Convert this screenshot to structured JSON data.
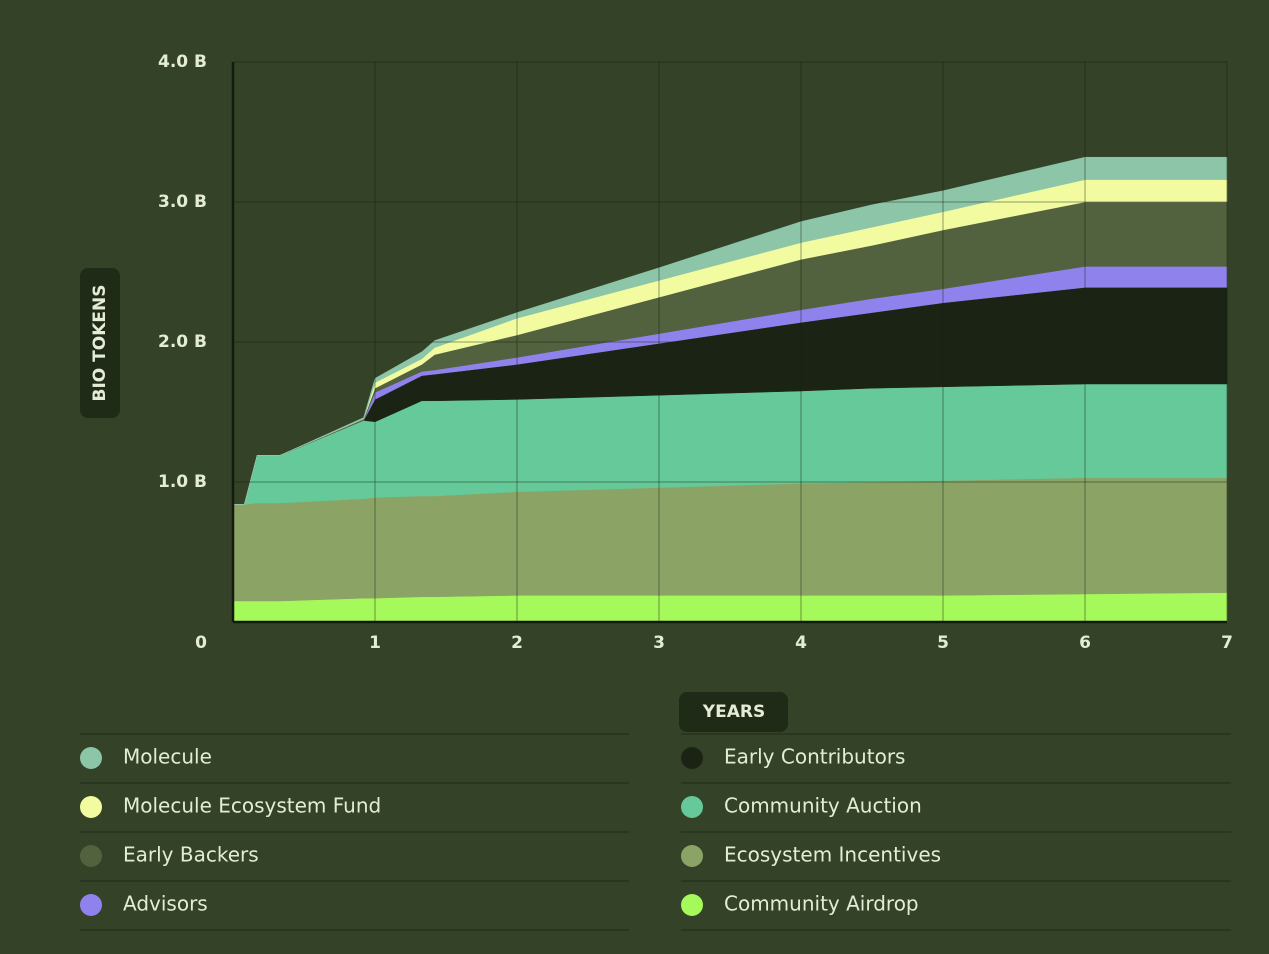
{
  "chart_data": {
    "type": "stacked-area",
    "x_label": "YEARS",
    "y_label": "BIO TOKENS",
    "x": [
      0,
      0.08,
      0.17,
      0.33,
      0.92,
      1,
      1.33,
      1.42,
      2,
      3,
      4,
      4.5,
      5,
      6,
      7
    ],
    "xlim": [
      0,
      7
    ],
    "xticks": [
      1,
      2,
      3,
      4,
      5,
      6,
      7
    ],
    "ylim": [
      0,
      4
    ],
    "yticks": [
      0,
      {
        "value": 1,
        "label": "1.0 B"
      },
      {
        "value": 2,
        "label": "2.0 B"
      },
      {
        "value": 3,
        "label": "3.0 B"
      },
      {
        "value": 4,
        "label": "4.0 B"
      }
    ],
    "grid": true,
    "series": [
      {
        "name": "Molecule",
        "color": "#8cc5a8",
        "values": [
          0,
          0,
          0,
          0,
          0.01,
          0.03,
          0.05,
          0.05,
          0.04,
          0.09,
          0.15,
          0.16,
          0.15,
          0.16,
          0.16
        ]
      },
      {
        "name": "Molecule Ecosystem Fund",
        "color": "#f3fba0",
        "values": [
          0,
          0,
          0,
          0,
          0,
          0.04,
          0.04,
          0.05,
          0.12,
          0.12,
          0.12,
          0.13,
          0.13,
          0.16,
          0.16
        ]
      },
      {
        "name": "Early Backers",
        "color": "#53623e",
        "values": [
          0,
          0,
          0,
          0,
          0.01,
          0.03,
          0.05,
          0.11,
          0.16,
          0.26,
          0.36,
          0.38,
          0.42,
          0.46,
          0.46
        ]
      },
      {
        "name": "Advisors",
        "color": "#9082ec",
        "values": [
          0,
          0,
          0,
          0,
          0,
          0.05,
          0.03,
          0.03,
          0.05,
          0.07,
          0.09,
          0.1,
          0.1,
          0.15,
          0.15
        ]
      },
      {
        "name": "Early Contributors",
        "color": "#1b2414",
        "values": [
          0,
          0,
          0,
          0,
          0,
          0.16,
          0.18,
          0.19,
          0.25,
          0.37,
          0.49,
          0.54,
          0.6,
          0.69,
          0.69
        ]
      },
      {
        "name": "Community Auction",
        "color": "#66c999",
        "values": [
          0,
          0,
          0.34,
          0.34,
          0.56,
          0.54,
          0.68,
          0.68,
          0.66,
          0.66,
          0.66,
          0.67,
          0.67,
          0.67,
          0.67
        ]
      },
      {
        "name": "Ecosystem Incentives",
        "color": "#8ba466",
        "values": [
          0.69,
          0.69,
          0.7,
          0.7,
          0.71,
          0.72,
          0.72,
          0.72,
          0.74,
          0.77,
          0.8,
          0.81,
          0.82,
          0.83,
          0.82
        ]
      },
      {
        "name": "Community Airdrop",
        "color": "#a6f95a",
        "values": [
          0.15,
          0.15,
          0.15,
          0.15,
          0.17,
          0.17,
          0.18,
          0.18,
          0.19,
          0.19,
          0.19,
          0.19,
          0.19,
          0.2,
          0.21
        ]
      }
    ]
  }
}
